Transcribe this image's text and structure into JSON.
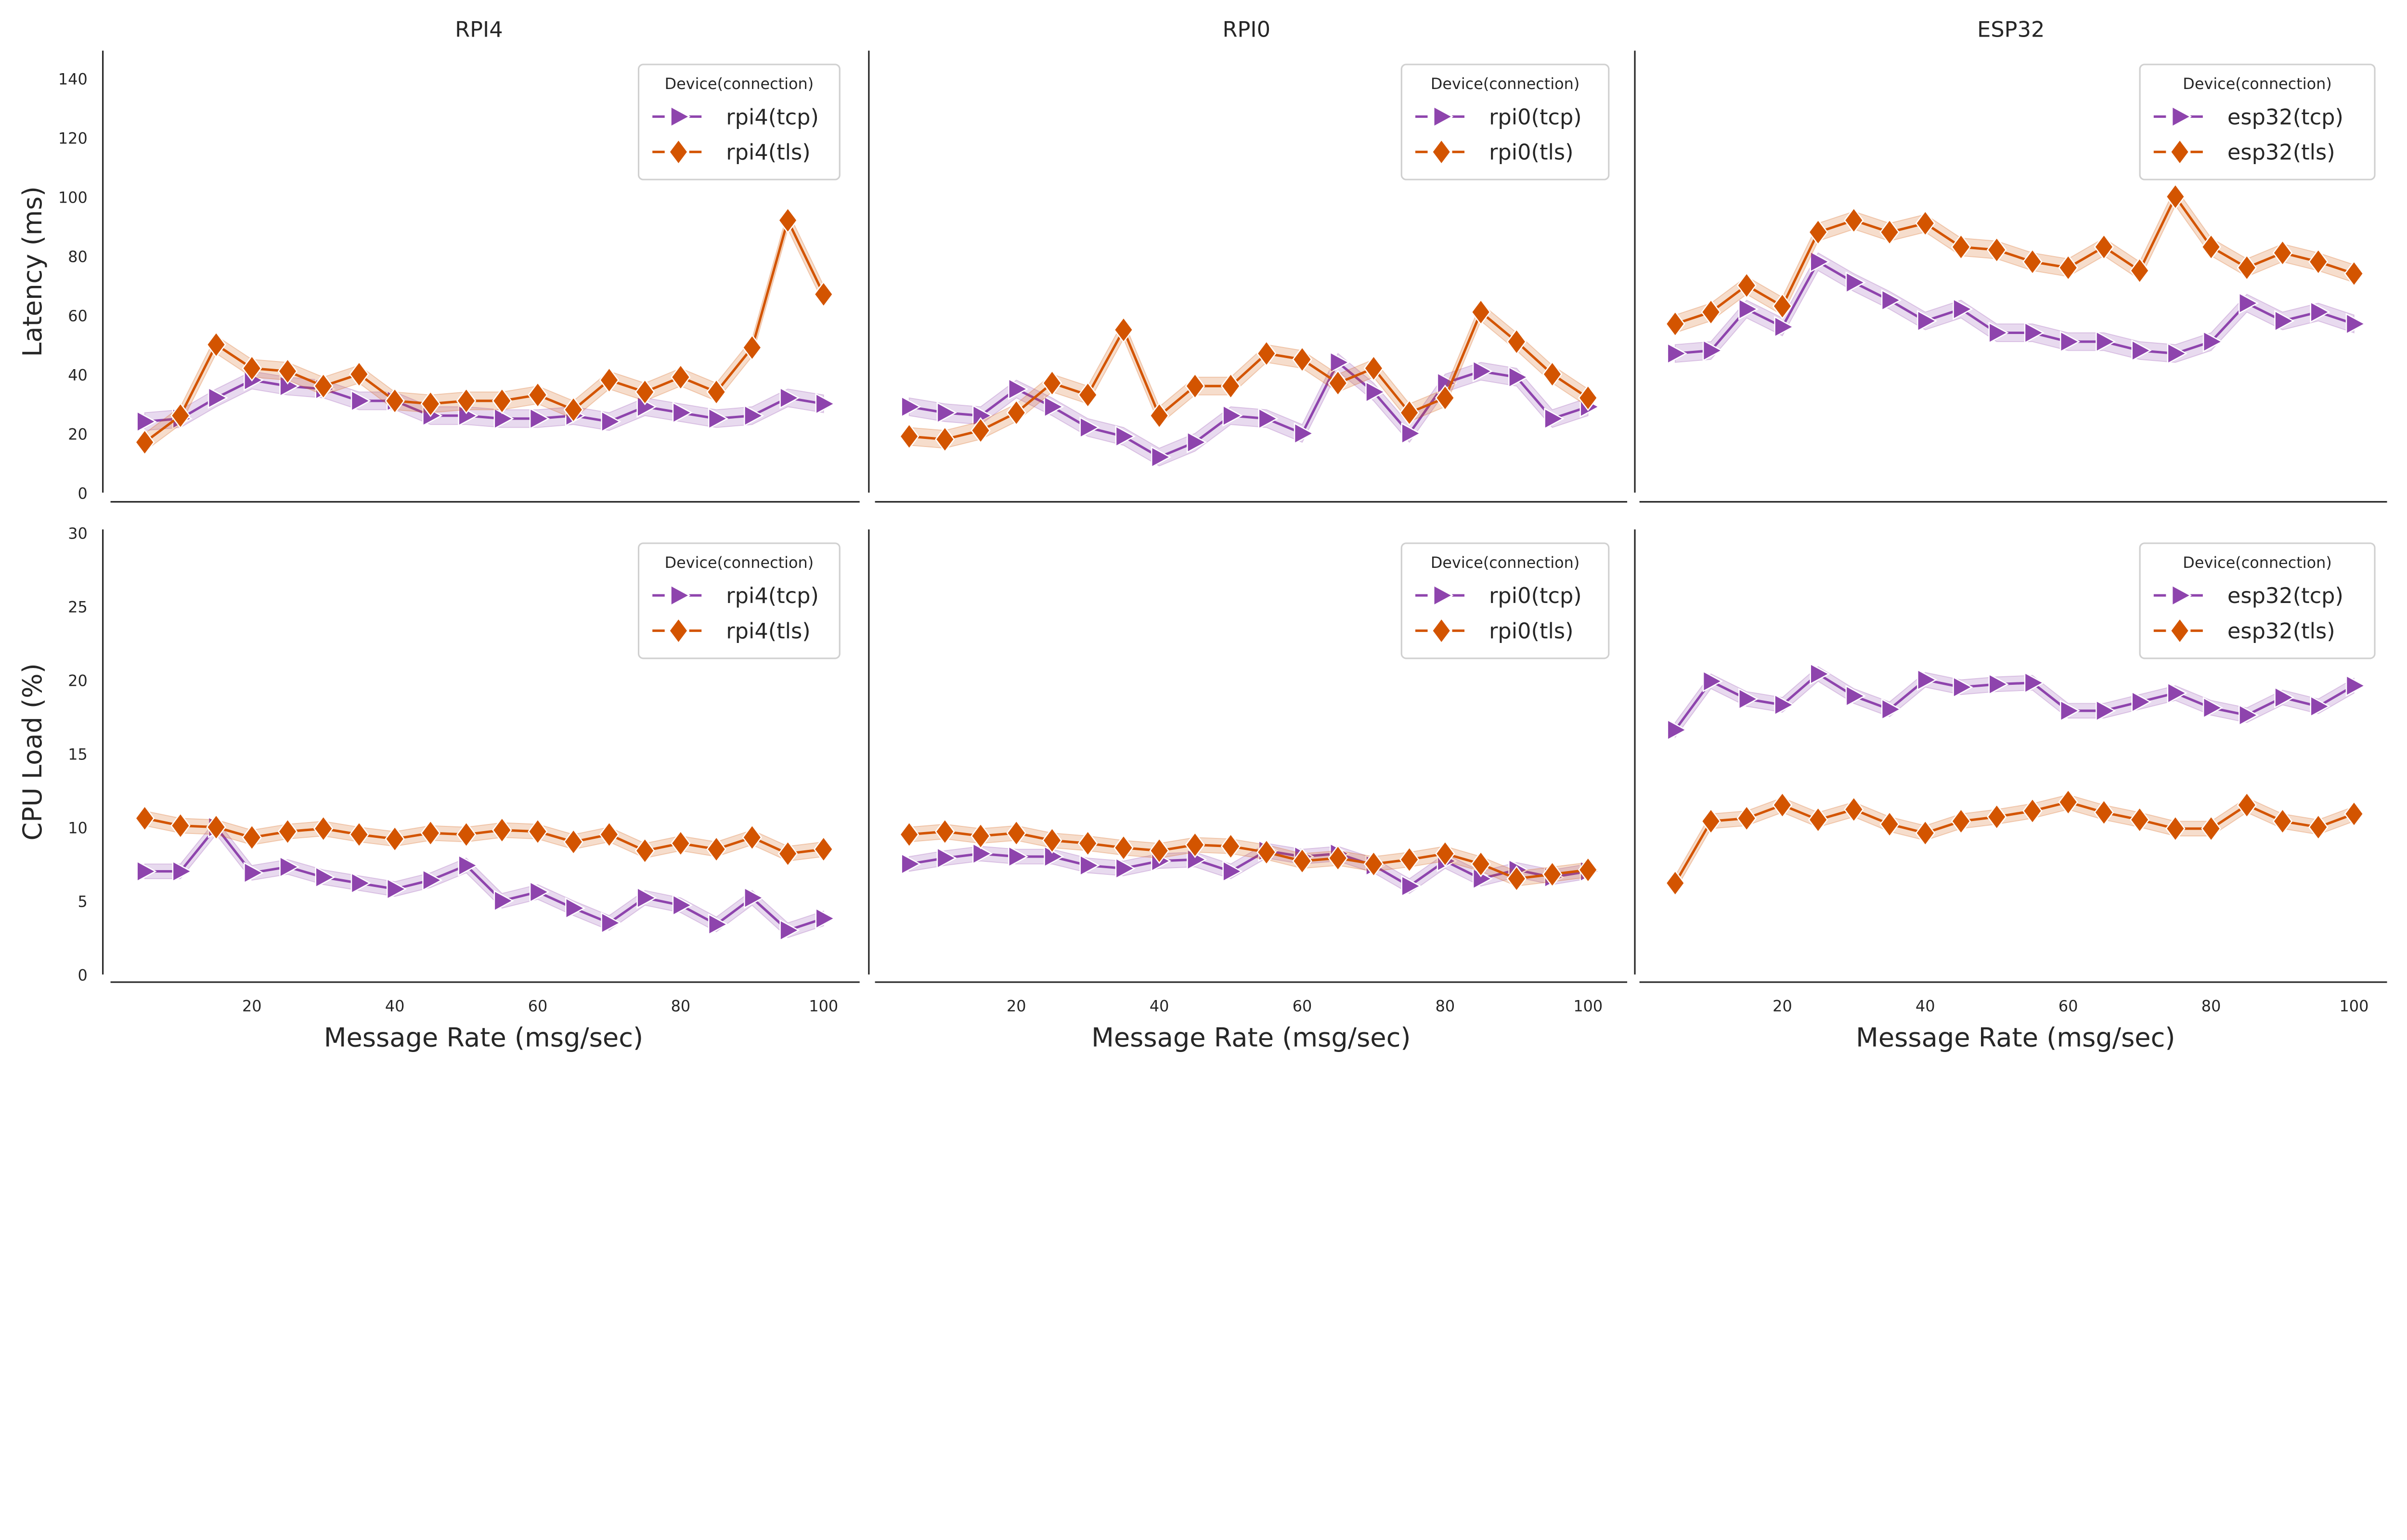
{
  "colors": {
    "tcp": "#8e44ad",
    "tls": "#d35400"
  },
  "chart_data": [
    {
      "type": "line",
      "title": "RPI4",
      "xlabel": "",
      "ylabel": "Latency (ms)",
      "ylim": [
        0,
        150
      ],
      "yticks": [
        0,
        20,
        40,
        60,
        80,
        100,
        120,
        140
      ],
      "xticks": [
        20,
        40,
        60,
        80,
        100
      ],
      "legend_title": "Device(connection)",
      "legend_position": "top-right",
      "grid": false,
      "x": [
        5,
        10,
        15,
        20,
        25,
        30,
        35,
        40,
        45,
        50,
        55,
        60,
        65,
        70,
        75,
        80,
        85,
        90,
        95,
        100
      ],
      "series": [
        {
          "name": "rpi4(tcp)",
          "key": "tcp",
          "marker": "triangle-right",
          "values": [
            24,
            25,
            32,
            38,
            36,
            35,
            31,
            31,
            26,
            26,
            25,
            25,
            26,
            24,
            29,
            27,
            25,
            26,
            32,
            30
          ]
        },
        {
          "name": "rpi4(tls)",
          "key": "tls",
          "marker": "diamond",
          "values": [
            17,
            26,
            50,
            42,
            41,
            36,
            40,
            31,
            30,
            31,
            31,
            33,
            28,
            38,
            34,
            39,
            34,
            49,
            92,
            67
          ]
        }
      ]
    },
    {
      "type": "line",
      "title": "RPI0",
      "xlabel": "",
      "ylabel": "",
      "ylim": [
        0,
        150
      ],
      "yticks": [],
      "xticks": [
        20,
        40,
        60,
        80,
        100
      ],
      "legend_title": "Device(connection)",
      "legend_position": "top-right",
      "grid": false,
      "x": [
        5,
        10,
        15,
        20,
        25,
        30,
        35,
        40,
        45,
        50,
        55,
        60,
        65,
        70,
        75,
        80,
        85,
        90,
        95,
        100
      ],
      "series": [
        {
          "name": "rpi0(tcp)",
          "key": "tcp",
          "marker": "triangle-right",
          "values": [
            29,
            27,
            26,
            35,
            29,
            22,
            19,
            12,
            17,
            26,
            25,
            20,
            44,
            34,
            20,
            37,
            41,
            39,
            25,
            29
          ]
        },
        {
          "name": "rpi0(tls)",
          "key": "tls",
          "marker": "diamond",
          "values": [
            19,
            18,
            21,
            27,
            37,
            33,
            55,
            26,
            36,
            36,
            47,
            45,
            37,
            42,
            27,
            32,
            61,
            51,
            40,
            32
          ]
        }
      ]
    },
    {
      "type": "line",
      "title": "ESP32",
      "xlabel": "",
      "ylabel": "",
      "ylim": [
        0,
        150
      ],
      "yticks": [],
      "xticks": [
        20,
        40,
        60,
        80,
        100
      ],
      "legend_title": "Device(connection)",
      "legend_position": "top-right",
      "grid": false,
      "x": [
        5,
        10,
        15,
        20,
        25,
        30,
        35,
        40,
        45,
        50,
        55,
        60,
        65,
        70,
        75,
        80,
        85,
        90,
        95,
        100
      ],
      "series": [
        {
          "name": "esp32(tcp)",
          "key": "tcp",
          "marker": "triangle-right",
          "values": [
            47,
            48,
            62,
            56,
            78,
            71,
            65,
            58,
            62,
            54,
            54,
            51,
            51,
            48,
            47,
            51,
            64,
            58,
            61,
            57
          ]
        },
        {
          "name": "esp32(tls)",
          "key": "tls",
          "marker": "diamond",
          "values": [
            57,
            61,
            70,
            63,
            88,
            92,
            88,
            91,
            83,
            82,
            78,
            76,
            83,
            75,
            100,
            83,
            76,
            81,
            78,
            74
          ]
        }
      ]
    },
    {
      "type": "line",
      "title": "",
      "xlabel": "Message Rate (msg/sec)",
      "ylabel": "CPU Load (%)",
      "ylim": [
        0,
        30
      ],
      "yticks": [
        0,
        5,
        10,
        15,
        20,
        25,
        30
      ],
      "xticks": [
        20,
        40,
        60,
        80,
        100
      ],
      "legend_title": "Device(connection)",
      "legend_position": "top-right",
      "grid": false,
      "x": [
        5,
        10,
        15,
        20,
        25,
        30,
        35,
        40,
        45,
        50,
        55,
        60,
        65,
        70,
        75,
        80,
        85,
        90,
        95,
        100
      ],
      "series": [
        {
          "name": "rpi4(tcp)",
          "key": "tcp",
          "marker": "triangle-right",
          "values": [
            7.0,
            7.0,
            10.0,
            6.9,
            7.3,
            6.6,
            6.2,
            5.8,
            6.4,
            7.4,
            5.0,
            5.6,
            4.5,
            3.5,
            5.2,
            4.7,
            3.4,
            5.2,
            3.0,
            3.8
          ]
        },
        {
          "name": "rpi4(tls)",
          "key": "tls",
          "marker": "diamond",
          "values": [
            10.6,
            10.1,
            10.0,
            9.3,
            9.7,
            9.9,
            9.5,
            9.2,
            9.6,
            9.5,
            9.8,
            9.7,
            9.0,
            9.5,
            8.4,
            8.9,
            8.5,
            9.3,
            8.2,
            8.5
          ]
        }
      ]
    },
    {
      "type": "line",
      "title": "",
      "xlabel": "Message Rate (msg/sec)",
      "ylabel": "",
      "ylim": [
        0,
        30
      ],
      "yticks": [],
      "xticks": [
        20,
        40,
        60,
        80,
        100
      ],
      "legend_title": "Device(connection)",
      "legend_position": "top-right",
      "grid": false,
      "x": [
        5,
        10,
        15,
        20,
        25,
        30,
        35,
        40,
        45,
        50,
        55,
        60,
        65,
        70,
        75,
        80,
        85,
        90,
        95,
        100
      ],
      "series": [
        {
          "name": "rpi0(tcp)",
          "key": "tcp",
          "marker": "triangle-right",
          "values": [
            7.5,
            7.9,
            8.2,
            8.0,
            8.0,
            7.4,
            7.2,
            7.7,
            7.8,
            7.0,
            8.4,
            8.0,
            8.2,
            7.4,
            6.0,
            7.7,
            6.5,
            7.1,
            6.6,
            7.0
          ]
        },
        {
          "name": "rpi0(tls)",
          "key": "tls",
          "marker": "diamond",
          "values": [
            9.5,
            9.7,
            9.4,
            9.6,
            9.1,
            8.9,
            8.6,
            8.4,
            8.8,
            8.7,
            8.3,
            7.7,
            7.9,
            7.5,
            7.8,
            8.2,
            7.5,
            6.5,
            6.8,
            7.1
          ]
        }
      ]
    },
    {
      "type": "line",
      "title": "",
      "xlabel": "Message Rate (msg/sec)",
      "ylabel": "",
      "ylim": [
        0,
        30
      ],
      "yticks": [],
      "xticks": [
        20,
        40,
        60,
        80,
        100
      ],
      "legend_title": "Device(connection)",
      "legend_position": "top-right",
      "grid": false,
      "x": [
        5,
        10,
        15,
        20,
        25,
        30,
        35,
        40,
        45,
        50,
        55,
        60,
        65,
        70,
        75,
        80,
        85,
        90,
        95,
        100
      ],
      "series": [
        {
          "name": "esp32(tcp)",
          "key": "tcp",
          "marker": "triangle-right",
          "values": [
            16.6,
            19.9,
            18.7,
            18.3,
            20.4,
            18.9,
            18.0,
            20.0,
            19.5,
            19.7,
            19.8,
            17.9,
            17.9,
            18.5,
            19.1,
            18.1,
            17.6,
            18.8,
            18.2,
            19.6
          ]
        },
        {
          "name": "esp32(tls)",
          "key": "tls",
          "marker": "diamond",
          "values": [
            6.2,
            10.4,
            10.6,
            11.5,
            10.5,
            11.2,
            10.2,
            9.6,
            10.4,
            10.7,
            11.1,
            11.7,
            11.0,
            10.5,
            9.9,
            9.9,
            11.5,
            10.4,
            10.0,
            10.9
          ]
        }
      ]
    }
  ]
}
